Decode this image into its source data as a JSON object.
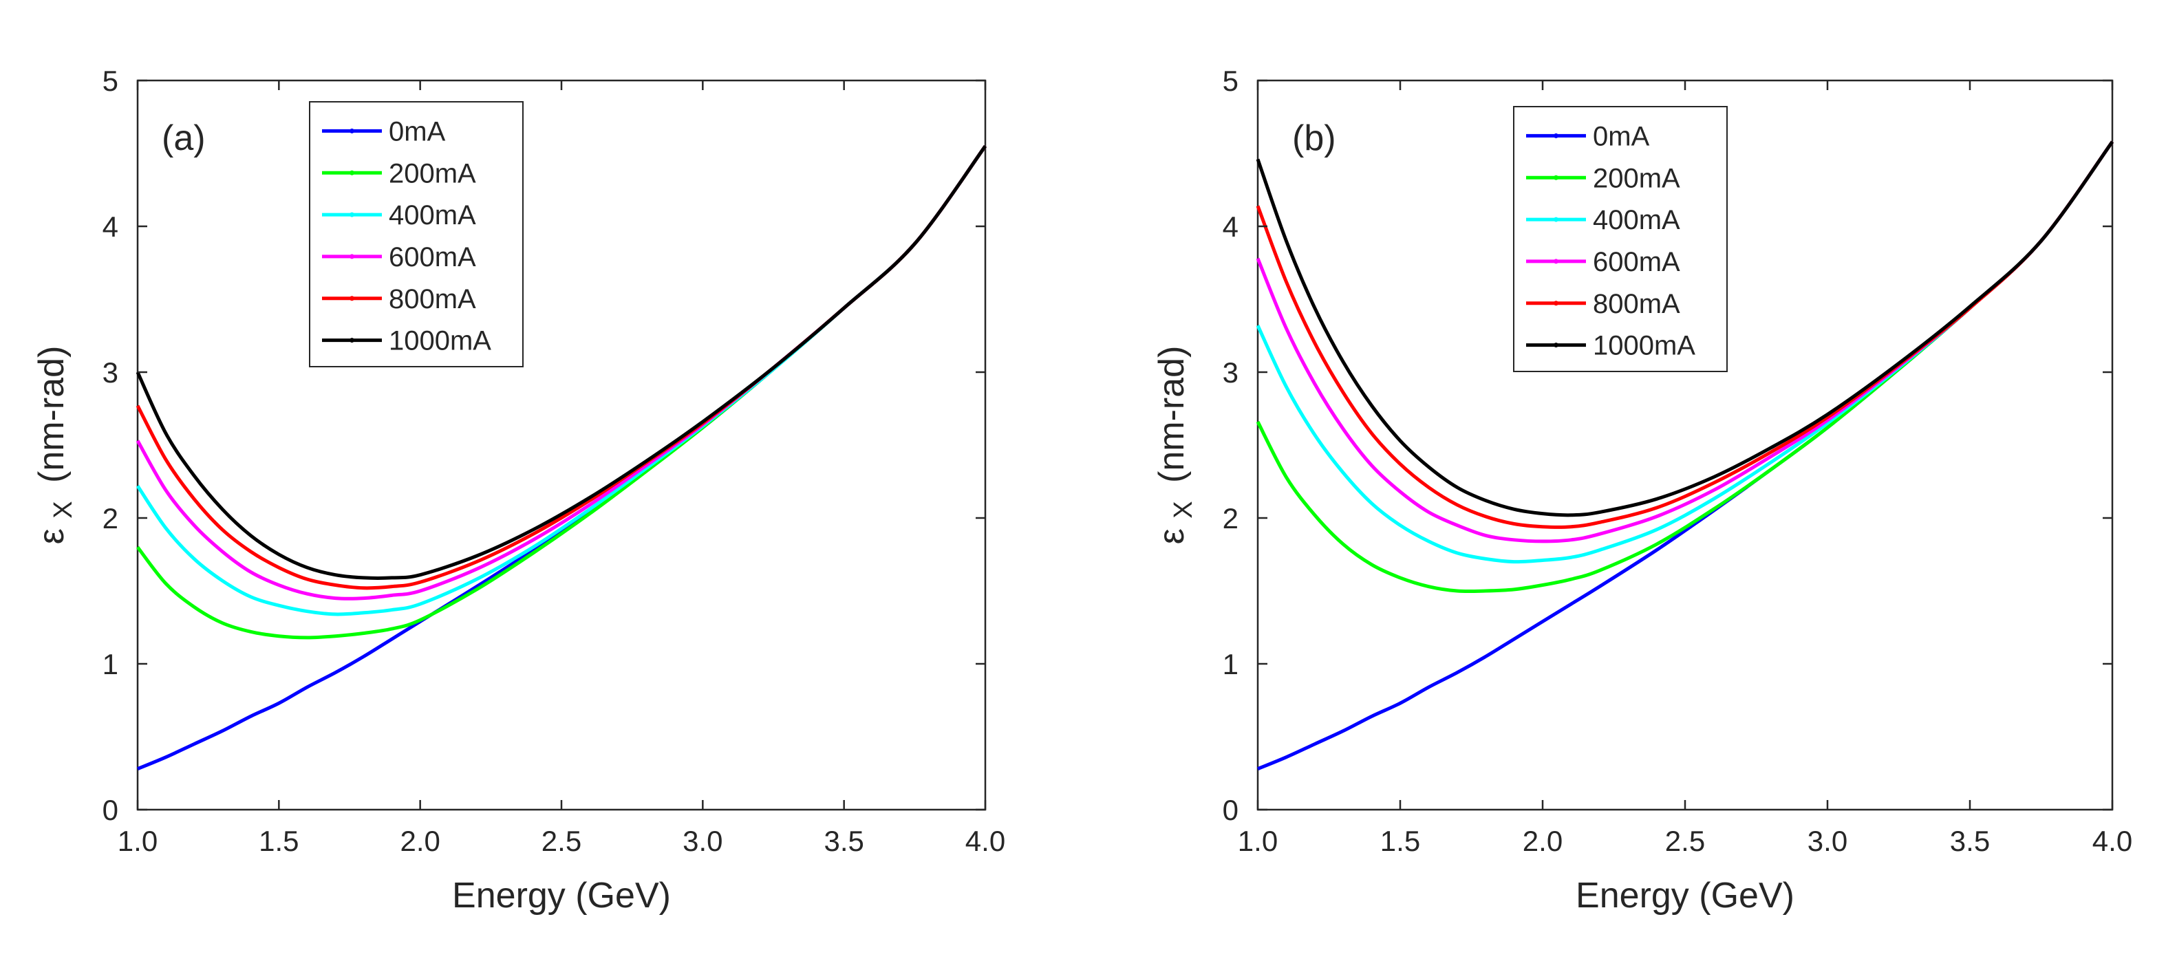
{
  "chart_data": [
    {
      "type": "line",
      "panel_label": "(a)",
      "xlabel": "Energy (GeV)",
      "ylabel_symbol": "ε",
      "ylabel_subscript": "X",
      "ylabel_unit": "(nm-rad)",
      "xlim": [
        1.0,
        4.0
      ],
      "ylim": [
        0,
        5
      ],
      "xticks": [
        "1.0",
        "1.5",
        "2.0",
        "2.5",
        "3.0",
        "3.5",
        "4.0"
      ],
      "yticks": [
        "0",
        "1",
        "2",
        "3",
        "4",
        "5"
      ],
      "grid": false,
      "legend_position": "top-left",
      "x": [
        1.0,
        1.1,
        1.2,
        1.3,
        1.4,
        1.5,
        1.6,
        1.7,
        1.8,
        1.9,
        2.0,
        2.2,
        2.4,
        2.6,
        2.8,
        3.0,
        3.25,
        3.5,
        3.75,
        4.0
      ],
      "series": [
        {
          "name": "0mA",
          "color": "#0000ff",
          "values": [
            0.28,
            0.36,
            0.45,
            0.54,
            0.64,
            0.73,
            0.84,
            0.94,
            1.05,
            1.17,
            1.29,
            1.53,
            1.78,
            2.05,
            2.33,
            2.62,
            3.02,
            3.44,
            3.88,
            4.55
          ]
        },
        {
          "name": "200mA",
          "color": "#00ff00",
          "values": [
            1.8,
            1.55,
            1.39,
            1.28,
            1.22,
            1.19,
            1.18,
            1.19,
            1.21,
            1.24,
            1.3,
            1.51,
            1.76,
            2.03,
            2.32,
            2.62,
            3.02,
            3.44,
            3.88,
            4.55
          ]
        },
        {
          "name": "400mA",
          "color": "#00ffff",
          "values": [
            2.22,
            1.93,
            1.72,
            1.57,
            1.46,
            1.4,
            1.36,
            1.34,
            1.35,
            1.37,
            1.41,
            1.58,
            1.8,
            2.06,
            2.34,
            2.63,
            3.02,
            3.44,
            3.88,
            4.55
          ]
        },
        {
          "name": "600mA",
          "color": "#ff00ff",
          "values": [
            2.53,
            2.19,
            1.95,
            1.77,
            1.63,
            1.54,
            1.48,
            1.45,
            1.45,
            1.47,
            1.5,
            1.65,
            1.85,
            2.09,
            2.36,
            2.64,
            3.03,
            3.44,
            3.88,
            4.55
          ]
        },
        {
          "name": "800mA",
          "color": "#ff0000",
          "values": [
            2.77,
            2.4,
            2.13,
            1.92,
            1.77,
            1.66,
            1.58,
            1.54,
            1.52,
            1.53,
            1.56,
            1.7,
            1.89,
            2.12,
            2.38,
            2.65,
            3.03,
            3.44,
            3.88,
            4.55
          ]
        },
        {
          "name": "1000mA",
          "color": "#000000",
          "values": [
            3.0,
            2.58,
            2.29,
            2.06,
            1.88,
            1.75,
            1.66,
            1.61,
            1.59,
            1.59,
            1.61,
            1.74,
            1.92,
            2.14,
            2.39,
            2.66,
            3.03,
            3.44,
            3.88,
            4.55
          ]
        }
      ]
    },
    {
      "type": "line",
      "panel_label": "(b)",
      "xlabel": "Energy (GeV)",
      "ylabel_symbol": "ε",
      "ylabel_subscript": "X",
      "ylabel_unit": "(nm-rad)",
      "xlim": [
        1.0,
        4.0
      ],
      "ylim": [
        0,
        5
      ],
      "xticks": [
        "1.0",
        "1.5",
        "2.0",
        "2.5",
        "3.0",
        "3.5",
        "4.0"
      ],
      "yticks": [
        "0",
        "1",
        "2",
        "3",
        "4",
        "5"
      ],
      "grid": false,
      "legend_position": "top-center",
      "x": [
        1.0,
        1.1,
        1.2,
        1.3,
        1.4,
        1.5,
        1.6,
        1.7,
        1.8,
        1.9,
        2.0,
        2.1,
        2.2,
        2.4,
        2.6,
        2.8,
        3.0,
        3.25,
        3.5,
        3.75,
        4.0
      ],
      "series": [
        {
          "name": "0mA",
          "color": "#0000ff",
          "values": [
            0.28,
            0.36,
            0.45,
            0.54,
            0.64,
            0.73,
            0.84,
            0.94,
            1.05,
            1.17,
            1.29,
            1.41,
            1.53,
            1.78,
            2.05,
            2.33,
            2.62,
            3.02,
            3.44,
            3.9,
            4.58
          ]
        },
        {
          "name": "200mA",
          "color": "#00ff00",
          "values": [
            2.66,
            2.28,
            2.02,
            1.82,
            1.68,
            1.59,
            1.53,
            1.5,
            1.5,
            1.51,
            1.54,
            1.58,
            1.64,
            1.82,
            2.06,
            2.33,
            2.62,
            3.02,
            3.44,
            3.9,
            4.58
          ]
        },
        {
          "name": "400mA",
          "color": "#00ffff",
          "values": [
            3.32,
            2.9,
            2.57,
            2.31,
            2.1,
            1.95,
            1.84,
            1.76,
            1.72,
            1.7,
            1.71,
            1.73,
            1.78,
            1.92,
            2.13,
            2.38,
            2.65,
            3.03,
            3.44,
            3.9,
            4.58
          ]
        },
        {
          "name": "600mA",
          "color": "#ff00ff",
          "values": [
            3.78,
            3.3,
            2.92,
            2.61,
            2.36,
            2.18,
            2.04,
            1.95,
            1.88,
            1.85,
            1.84,
            1.85,
            1.89,
            2.01,
            2.19,
            2.42,
            2.67,
            3.04,
            3.44,
            3.9,
            4.58
          ]
        },
        {
          "name": "800mA",
          "color": "#ff0000",
          "values": [
            4.14,
            3.62,
            3.2,
            2.86,
            2.58,
            2.37,
            2.21,
            2.09,
            2.01,
            1.96,
            1.94,
            1.94,
            1.97,
            2.07,
            2.24,
            2.45,
            2.69,
            3.05,
            3.44,
            3.9,
            4.58
          ]
        },
        {
          "name": "1000mA",
          "color": "#000000",
          "values": [
            4.46,
            3.9,
            3.44,
            3.07,
            2.77,
            2.53,
            2.35,
            2.21,
            2.12,
            2.06,
            2.03,
            2.02,
            2.04,
            2.13,
            2.28,
            2.48,
            2.71,
            3.06,
            3.45,
            3.9,
            4.58
          ]
        }
      ]
    }
  ]
}
